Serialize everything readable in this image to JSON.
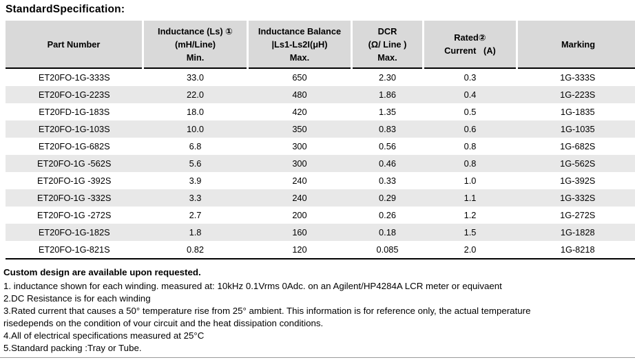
{
  "title": "StandardSpecification:",
  "table": {
    "columns": [
      {
        "lines": [
          "Part Number"
        ]
      },
      {
        "lines": [
          "Inductance (Ls) ①",
          "(mH/Line)",
          "Min."
        ]
      },
      {
        "lines": [
          "Inductance Balance",
          "|Ls1-Ls2I(μH)",
          "Max."
        ]
      },
      {
        "lines": [
          "DCR",
          "(Ω/ Line )",
          "Max."
        ]
      },
      {
        "lines": [
          "Rated②",
          "Current   (A)"
        ]
      },
      {
        "lines": [
          "Marking"
        ]
      }
    ],
    "rows": [
      [
        "ET20FO-1G-333S",
        "33.0",
        "650",
        "2.30",
        "0.3",
        "1G-333S"
      ],
      [
        "ET20FO-1G-223S",
        "22.0",
        "480",
        "1.86",
        "0.4",
        "1G-223S"
      ],
      [
        "ET20FD-1G-183S",
        "18.0",
        "420",
        "1.35",
        "0.5",
        "1G-1835"
      ],
      [
        "ET20FO-1G-103S",
        "10.0",
        "350",
        "0.83",
        "0.6",
        "1G-1035"
      ],
      [
        "ET20FO-1G-682S",
        "6.8",
        "300",
        "0.56",
        "0.8",
        "1G-682S"
      ],
      [
        "ET20FO-1G -562S",
        "5.6",
        "300",
        "0.46",
        "0.8",
        "1G-562S"
      ],
      [
        "ET20FO-1G -392S",
        "3.9",
        "240",
        "0.33",
        "1.0",
        "1G-392S"
      ],
      [
        "ET20FO-1G -332S",
        "3.3",
        "240",
        "0.29",
        "1.1",
        "1G-332S"
      ],
      [
        "ET20FO-1G -272S",
        "2.7",
        "200",
        "0.26",
        "1.2",
        "1G-272S"
      ],
      [
        "ET20FO-1G-182S",
        "1.8",
        "160",
        "0.18",
        "1.5",
        "1G-1828"
      ],
      [
        "ET20FO-1G-821S",
        "0.82",
        "120",
        "0.085",
        "2.0",
        "1G-8218"
      ]
    ]
  },
  "notes": {
    "heading": "Custom design are available upon requested.",
    "items": [
      "1. inductance shown for each winding. measured at: 10kHz 0.1Vrms 0Adc. on an Agilent/HP4284A LCR meter or equivaent",
      "2.DC Resistance is for each winding",
      "3.Rated current that causes a 50° temperature rise from 25° ambient. This information is for reference only, the actual temperature",
      "risedepends on the condition of vour circuit and the heat dissipation conditions.",
      "4.All of electrical specifications measured at 25°C",
      "5.Standard packing :Tray or Tube."
    ]
  },
  "colors": {
    "header_bg": "#d9d9d9",
    "row_stripe": "#e8e8e8",
    "heavy_rule": "#000000",
    "bottom_rule": "#9a9a9a"
  }
}
